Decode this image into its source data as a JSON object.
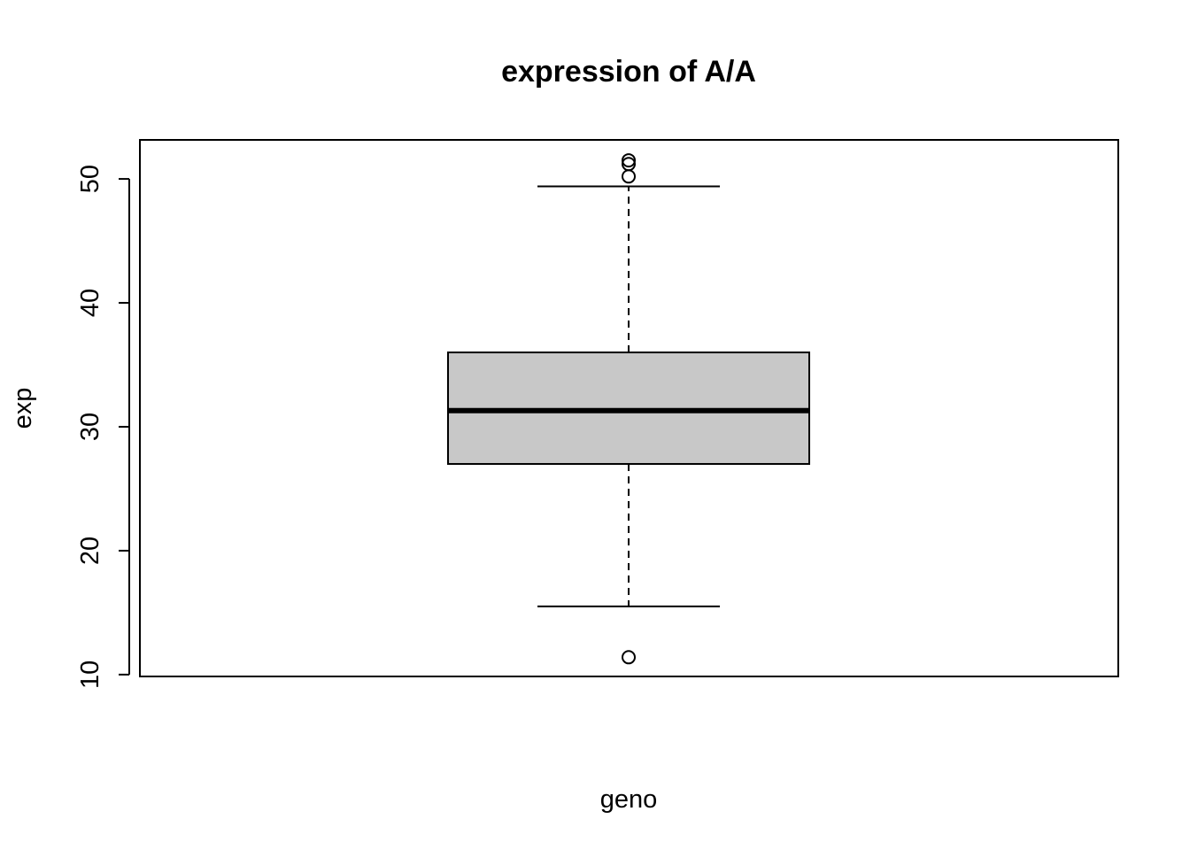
{
  "chart_data": {
    "type": "boxplot",
    "title": "expression of A/A",
    "xlabel": "geno",
    "ylabel": "exp",
    "ylim": [
      9.85,
      53.15
    ],
    "yticks": [
      10,
      20,
      30,
      40,
      50
    ],
    "ytick_labels": [
      "10",
      "20",
      "30",
      "40",
      "50"
    ],
    "grid": false,
    "legend": "none",
    "box_fill": "#c8c8c8",
    "line_color": "#000000",
    "boxes": [
      {
        "whisker_low": 15.5,
        "q1": 27.0,
        "median": 31.3,
        "q3": 36.0,
        "whisker_high": 49.4,
        "outliers": [
          51.5,
          51.2,
          50.2,
          11.4
        ]
      }
    ]
  }
}
